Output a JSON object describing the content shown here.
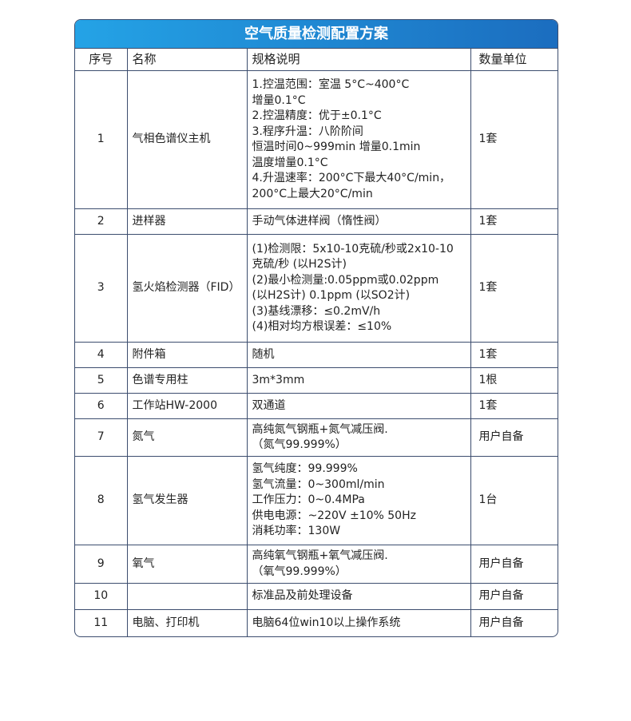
{
  "title": "空气质量检测配置方案",
  "headers": [
    "序号",
    "名称",
    "规格说明",
    "数量单位"
  ],
  "rows": [
    {
      "no": "1",
      "name": "气相色谱仪主机",
      "spec": [
        "1.控温范围：室温 5°C~400°C",
        "增量0.1°C",
        "2.控温精度：优于±0.1°C",
        "3.程序升温：八阶阶间",
        "恒温时间0~999min 增量0.1min",
        "温度增量0.1°C",
        "4.升温速率：200°C下最大40°C/min，",
        "200°C上最大20°C/min"
      ],
      "qty": "1套"
    },
    {
      "no": "2",
      "name": "进样器",
      "spec": [
        "手动气体进样阀（惰性阀）"
      ],
      "qty": "1套"
    },
    {
      "no": "3",
      "name": "氢火焰检测器（FID）",
      "spec": [
        "(1)检测限：5x10-10克硫/秒或2x10-10",
        "克硫/秒 (以H2S计)",
        "(2)最小检测量:0.05ppm或0.02ppm",
        "(以H2S计) 0.1ppm (以SO2计)",
        "(3)基线漂移：≤0.2mV/h",
        "(4)相对均方根误差：≤10%"
      ],
      "qty": "1套"
    },
    {
      "no": "4",
      "name": "附件箱",
      "spec": [
        "随机"
      ],
      "qty": "1套"
    },
    {
      "no": "5",
      "name": "色谱专用柱",
      "spec": [
        "3m*3mm"
      ],
      "qty": "1根"
    },
    {
      "no": "6",
      "name": "工作站HW-2000",
      "spec": [
        "双通道"
      ],
      "qty": "1套"
    },
    {
      "no": "7",
      "name": "氮气",
      "spec": [
        "高纯氮气钢瓶+氮气减压阀.",
        "（氮气99.999%）"
      ],
      "qty": "用户自备"
    },
    {
      "no": "8",
      "name": "氢气发生器",
      "spec": [
        "氢气纯度：99.999%",
        "氢气流量：0~300ml/min",
        "工作压力：0~0.4MPa",
        "供电电源：~220V ±10% 50Hz",
        "消耗功率：130W"
      ],
      "qty": "1台"
    },
    {
      "no": "9",
      "name": "氧气",
      "spec": [
        "高纯氧气钢瓶+氧气减压阀.",
        "（氧气99.999%）"
      ],
      "qty": "用户自备"
    },
    {
      "no": "10",
      "name": "",
      "spec": [
        "标准品及前处理设备"
      ],
      "qty": "用户自备"
    },
    {
      "no": "11",
      "name": "电脑、打印机",
      "spec": [
        "电脑64位win10以上操作系统"
      ],
      "qty": "用户自备"
    }
  ]
}
